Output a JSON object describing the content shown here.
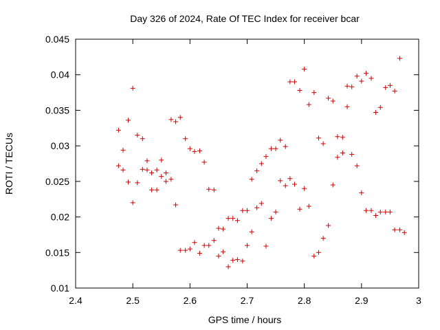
{
  "chart_data": {
    "type": "scatter",
    "title": "Day 326 of 2024, Rate Of TEC Index for receiver bcar",
    "xlabel": "GPS time / hours",
    "ylabel": "ROTI / TECUs",
    "xlim": [
      2.4,
      3.0
    ],
    "ylim": [
      0.01,
      0.045
    ],
    "xticks": [
      "2.4",
      "2.5",
      "2.6",
      "2.7",
      "2.8",
      "2.9",
      "3"
    ],
    "yticks": [
      "0.01",
      "0.015",
      "0.02",
      "0.025",
      "0.03",
      "0.035",
      "0.04",
      "0.045"
    ],
    "grid": false,
    "marker": "plus",
    "marker_color": "#cc0000",
    "series": [
      {
        "name": "ROTI",
        "points": [
          [
            2.475,
            0.0322
          ],
          [
            2.475,
            0.0272
          ],
          [
            2.483,
            0.0294
          ],
          [
            2.483,
            0.0266
          ],
          [
            2.492,
            0.0336
          ],
          [
            2.492,
            0.0249
          ],
          [
            2.5,
            0.0381
          ],
          [
            2.5,
            0.022
          ],
          [
            2.508,
            0.0315
          ],
          [
            2.508,
            0.0248
          ],
          [
            2.517,
            0.031
          ],
          [
            2.517,
            0.0267
          ],
          [
            2.525,
            0.0279
          ],
          [
            2.525,
            0.0266
          ],
          [
            2.533,
            0.0262
          ],
          [
            2.533,
            0.0238
          ],
          [
            2.542,
            0.0266
          ],
          [
            2.542,
            0.0238
          ],
          [
            2.55,
            0.028
          ],
          [
            2.55,
            0.0257
          ],
          [
            2.558,
            0.0262
          ],
          [
            2.558,
            0.025
          ],
          [
            2.567,
            0.0337
          ],
          [
            2.567,
            0.0253
          ],
          [
            2.575,
            0.0334
          ],
          [
            2.575,
            0.0217
          ],
          [
            2.583,
            0.034
          ],
          [
            2.583,
            0.0153
          ],
          [
            2.592,
            0.031
          ],
          [
            2.592,
            0.0153
          ],
          [
            2.6,
            0.0296
          ],
          [
            2.6,
            0.0155
          ],
          [
            2.608,
            0.0292
          ],
          [
            2.608,
            0.0164
          ],
          [
            2.617,
            0.0293
          ],
          [
            2.617,
            0.0149
          ],
          [
            2.625,
            0.0277
          ],
          [
            2.625,
            0.016
          ],
          [
            2.633,
            0.0239
          ],
          [
            2.633,
            0.016
          ],
          [
            2.642,
            0.0238
          ],
          [
            2.642,
            0.0167
          ],
          [
            2.65,
            0.0184
          ],
          [
            2.65,
            0.0145
          ],
          [
            2.658,
            0.0183
          ],
          [
            2.658,
            0.0151
          ],
          [
            2.667,
            0.0198
          ],
          [
            2.667,
            0.013
          ],
          [
            2.675,
            0.0198
          ],
          [
            2.675,
            0.0139
          ],
          [
            2.683,
            0.0195
          ],
          [
            2.683,
            0.014
          ],
          [
            2.692,
            0.0209
          ],
          [
            2.692,
            0.0138
          ],
          [
            2.7,
            0.0209
          ],
          [
            2.7,
            0.016
          ],
          [
            2.708,
            0.0253
          ],
          [
            2.708,
            0.0179
          ],
          [
            2.717,
            0.0265
          ],
          [
            2.717,
            0.0213
          ],
          [
            2.725,
            0.0275
          ],
          [
            2.725,
            0.0219
          ],
          [
            2.733,
            0.0285
          ],
          [
            2.733,
            0.0159
          ],
          [
            2.742,
            0.0296
          ],
          [
            2.742,
            0.0198
          ],
          [
            2.75,
            0.0296
          ],
          [
            2.75,
            0.0207
          ],
          [
            2.758,
            0.0308
          ],
          [
            2.758,
            0.0251
          ],
          [
            2.767,
            0.0299
          ],
          [
            2.767,
            0.0244
          ],
          [
            2.775,
            0.039
          ],
          [
            2.775,
            0.0254
          ],
          [
            2.783,
            0.039
          ],
          [
            2.783,
            0.0246
          ],
          [
            2.792,
            0.0378
          ],
          [
            2.792,
            0.0211
          ],
          [
            2.8,
            0.0408
          ],
          [
            2.8,
            0.024
          ],
          [
            2.808,
            0.0358
          ],
          [
            2.808,
            0.0215
          ],
          [
            2.817,
            0.0375
          ],
          [
            2.817,
            0.0145
          ],
          [
            2.825,
            0.0311
          ],
          [
            2.825,
            0.015
          ],
          [
            2.833,
            0.0303
          ],
          [
            2.833,
            0.017
          ],
          [
            2.842,
            0.0367
          ],
          [
            2.842,
            0.0188
          ],
          [
            2.85,
            0.0363
          ],
          [
            2.85,
            0.0245
          ],
          [
            2.858,
            0.0313
          ],
          [
            2.858,
            0.0284
          ],
          [
            2.867,
            0.0312
          ],
          [
            2.867,
            0.029
          ],
          [
            2.875,
            0.0384
          ],
          [
            2.875,
            0.0355
          ],
          [
            2.883,
            0.0383
          ],
          [
            2.883,
            0.0288
          ],
          [
            2.892,
            0.0398
          ],
          [
            2.892,
            0.0272
          ],
          [
            2.9,
            0.0391
          ],
          [
            2.9,
            0.0234
          ],
          [
            2.908,
            0.0402
          ],
          [
            2.908,
            0.0209
          ],
          [
            2.917,
            0.0395
          ],
          [
            2.917,
            0.0209
          ],
          [
            2.925,
            0.0347
          ],
          [
            2.925,
            0.0202
          ],
          [
            2.933,
            0.0354
          ],
          [
            2.933,
            0.0207
          ],
          [
            2.942,
            0.0382
          ],
          [
            2.942,
            0.0207
          ],
          [
            2.95,
            0.0385
          ],
          [
            2.95,
            0.0207
          ],
          [
            2.958,
            0.0377
          ],
          [
            2.958,
            0.0182
          ],
          [
            2.967,
            0.0423
          ],
          [
            2.967,
            0.0182
          ],
          [
            2.975,
            0.0178
          ]
        ]
      }
    ]
  }
}
